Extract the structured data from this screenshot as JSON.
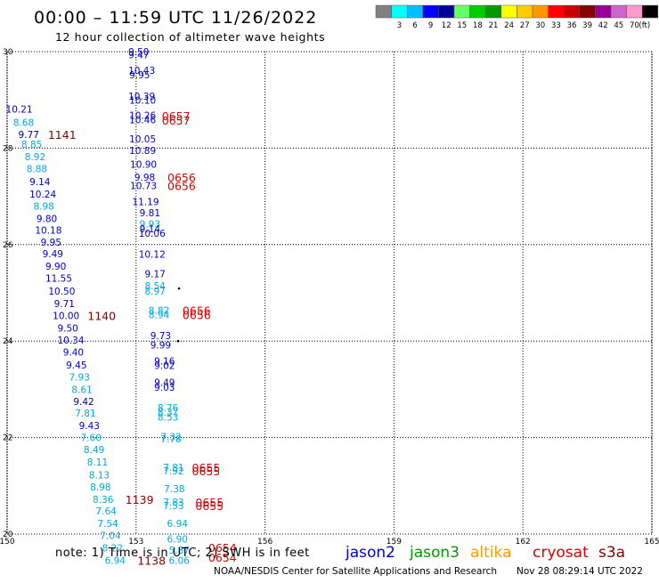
{
  "header": {
    "title": "00:00 – 11:59 UTC 11/26/2022",
    "subtitle": "12 hour collection of altimeter wave heights"
  },
  "color_scale": {
    "unit": "(ft)",
    "bins": [
      {
        "label": "",
        "color": "#808080"
      },
      {
        "label": "3",
        "color": "#00ffff"
      },
      {
        "label": "6",
        "color": "#00bfff"
      },
      {
        "label": "9",
        "color": "#0000ff"
      },
      {
        "label": "12",
        "color": "#000099"
      },
      {
        "label": "15",
        "color": "#66ff66"
      },
      {
        "label": "18",
        "color": "#00cc00"
      },
      {
        "label": "21",
        "color": "#009900"
      },
      {
        "label": "24",
        "color": "#ffff00"
      },
      {
        "label": "27",
        "color": "#ffcc00"
      },
      {
        "label": "30",
        "color": "#ff9900"
      },
      {
        "label": "33",
        "color": "#ff0000"
      },
      {
        "label": "36",
        "color": "#cc0000"
      },
      {
        "label": "39",
        "color": "#880000"
      },
      {
        "label": "42",
        "color": "#990099"
      },
      {
        "label": "45",
        "color": "#cc66cc"
      },
      {
        "label": "70",
        "color": "#ff99cc"
      },
      {
        "label": "",
        "color": "#000000"
      }
    ]
  },
  "footer": {
    "note": "note: 1) Time is in UTC; 2) SWH is in feet",
    "credit": "NOAA/NESDIS Center for Satellite Applications and Research",
    "timestamp": "Nov 28 08:29:14 UTC 2022",
    "satellites": [
      {
        "name": "jason2",
        "color": "#0000cc"
      },
      {
        "name": "jason3",
        "color": "#009900"
      },
      {
        "name": "altika",
        "color": "#ff9900"
      },
      {
        "name": "cryosat",
        "color": "#dd0000"
      },
      {
        "name": "s3a",
        "color": "#880000"
      }
    ]
  },
  "chart_data": {
    "type": "scatter",
    "title": "12 hour collection of altimeter wave heights",
    "xlim": [
      150,
      165
    ],
    "ylim": [
      20,
      30
    ],
    "x_ticks": [
      "150",
      "153",
      "156",
      "159",
      "162",
      "165"
    ],
    "y_ticks": [
      "20",
      "22",
      "24",
      "26",
      "28",
      "30"
    ],
    "grid": true,
    "swh_labels": [
      {
        "lon": 152.82,
        "lat": 30.0,
        "text": "9.50",
        "color": "#0000cc"
      },
      {
        "lon": 152.82,
        "lat": 29.94,
        "text": "9.47",
        "color": "#0000cc"
      },
      {
        "lon": 152.82,
        "lat": 29.61,
        "text": "10.43",
        "color": "#0000cc"
      },
      {
        "lon": 152.84,
        "lat": 29.52,
        "text": "9.95",
        "color": "#0000cc"
      },
      {
        "lon": 152.82,
        "lat": 29.08,
        "text": "10.39",
        "color": "#0000cc"
      },
      {
        "lon": 152.84,
        "lat": 28.99,
        "text": "10.10",
        "color": "#0000cc"
      },
      {
        "lon": 149.97,
        "lat": 28.81,
        "text": "10.21",
        "color": "#0000cc"
      },
      {
        "lon": 152.84,
        "lat": 28.68,
        "text": "10.26",
        "color": "#0000cc"
      },
      {
        "lon": 152.84,
        "lat": 28.59,
        "text": "10.46",
        "color": "#0000cc"
      },
      {
        "lon": 150.14,
        "lat": 28.53,
        "text": "8.68",
        "color": "#00aadd"
      },
      {
        "lon": 150.26,
        "lat": 28.28,
        "text": "9.77",
        "color": "#000088"
      },
      {
        "lon": 152.84,
        "lat": 28.19,
        "text": "10.05",
        "color": "#0000cc"
      },
      {
        "lon": 150.33,
        "lat": 28.08,
        "text": "8.85",
        "color": "#00aadd"
      },
      {
        "lon": 152.84,
        "lat": 27.95,
        "text": "10.89",
        "color": "#0000cc"
      },
      {
        "lon": 150.41,
        "lat": 27.82,
        "text": "8.92",
        "color": "#00aadd"
      },
      {
        "lon": 152.86,
        "lat": 27.67,
        "text": "10.90",
        "color": "#0000cc"
      },
      {
        "lon": 150.45,
        "lat": 27.57,
        "text": "8.88",
        "color": "#00aadd"
      },
      {
        "lon": 152.96,
        "lat": 27.4,
        "text": "9.98",
        "color": "#0000cc"
      },
      {
        "lon": 150.52,
        "lat": 27.31,
        "text": "9.14",
        "color": "#0000cc"
      },
      {
        "lon": 152.86,
        "lat": 27.22,
        "text": "10.73",
        "color": "#0000cc"
      },
      {
        "lon": 150.52,
        "lat": 27.05,
        "text": "10.24",
        "color": "#0000cc"
      },
      {
        "lon": 152.91,
        "lat": 26.89,
        "text": "11.19",
        "color": "#0000cc"
      },
      {
        "lon": 150.61,
        "lat": 26.8,
        "text": "8.98",
        "color": "#00aadd"
      },
      {
        "lon": 153.08,
        "lat": 26.66,
        "text": "9.81",
        "color": "#0000cc"
      },
      {
        "lon": 150.68,
        "lat": 26.54,
        "text": "9.80",
        "color": "#0000cc"
      },
      {
        "lon": 153.08,
        "lat": 26.43,
        "text": "9.93",
        "color": "#00aadd"
      },
      {
        "lon": 150.65,
        "lat": 26.3,
        "text": "10.18",
        "color": "#0000cc"
      },
      {
        "lon": 153.08,
        "lat": 26.33,
        "text": "9.14",
        "color": "#0000cc"
      },
      {
        "lon": 153.06,
        "lat": 26.24,
        "text": "10.06",
        "color": "#0000cc"
      },
      {
        "lon": 150.78,
        "lat": 26.05,
        "text": "9.95",
        "color": "#0000cc"
      },
      {
        "lon": 150.82,
        "lat": 25.81,
        "text": "9.49",
        "color": "#0000cc"
      },
      {
        "lon": 153.06,
        "lat": 25.8,
        "text": "10.12",
        "color": "#0000cc"
      },
      {
        "lon": 150.89,
        "lat": 25.55,
        "text": "9.90",
        "color": "#0000cc"
      },
      {
        "lon": 153.2,
        "lat": 25.4,
        "text": "9.17",
        "color": "#0000cc"
      },
      {
        "lon": 150.89,
        "lat": 25.3,
        "text": "11.55",
        "color": "#0000cc"
      },
      {
        "lon": 153.2,
        "lat": 25.15,
        "text": "8.54",
        "color": "#00aadd"
      },
      {
        "lon": 150.96,
        "lat": 25.04,
        "text": "10.50",
        "color": "#0000cc"
      },
      {
        "lon": 153.2,
        "lat": 25.04,
        "text": "8.97",
        "color": "#00aadd"
      },
      {
        "lon": 151.09,
        "lat": 24.78,
        "text": "9.71",
        "color": "#0000cc"
      },
      {
        "lon": 153.29,
        "lat": 24.64,
        "text": "8.82",
        "color": "#00aadd"
      },
      {
        "lon": 153.29,
        "lat": 24.55,
        "text": "8.94",
        "color": "#00aadd"
      },
      {
        "lon": 151.06,
        "lat": 24.53,
        "text": "10.00",
        "color": "#0000cc"
      },
      {
        "lon": 151.17,
        "lat": 24.27,
        "text": "9.50",
        "color": "#0000cc"
      },
      {
        "lon": 153.33,
        "lat": 24.11,
        "text": "9.73",
        "color": "#0000cc"
      },
      {
        "lon": 151.17,
        "lat": 24.02,
        "text": "10.34",
        "color": "#0000cc"
      },
      {
        "lon": 153.33,
        "lat": 23.92,
        "text": "9.99",
        "color": "#0000cc"
      },
      {
        "lon": 151.3,
        "lat": 23.77,
        "text": "9.40",
        "color": "#0000cc"
      },
      {
        "lon": 153.42,
        "lat": 23.59,
        "text": "9.16",
        "color": "#0000cc"
      },
      {
        "lon": 151.37,
        "lat": 23.51,
        "text": "9.45",
        "color": "#0000cc"
      },
      {
        "lon": 153.42,
        "lat": 23.5,
        "text": "9.02",
        "color": "#0000cc"
      },
      {
        "lon": 151.44,
        "lat": 23.26,
        "text": "7.93",
        "color": "#00aadd"
      },
      {
        "lon": 153.42,
        "lat": 23.15,
        "text": "9.49",
        "color": "#0000cc"
      },
      {
        "lon": 153.42,
        "lat": 23.04,
        "text": "9.03",
        "color": "#0000cc"
      },
      {
        "lon": 151.5,
        "lat": 23.0,
        "text": "8.61",
        "color": "#00aadd"
      },
      {
        "lon": 151.54,
        "lat": 22.75,
        "text": "9.42",
        "color": "#000088"
      },
      {
        "lon": 153.5,
        "lat": 22.62,
        "text": "8.76",
        "color": "#00aadd"
      },
      {
        "lon": 153.5,
        "lat": 22.53,
        "text": "8.37",
        "color": "#00aadd"
      },
      {
        "lon": 151.58,
        "lat": 22.51,
        "text": "7.81",
        "color": "#00aadd"
      },
      {
        "lon": 153.5,
        "lat": 22.43,
        "text": "8.53",
        "color": "#00aadd"
      },
      {
        "lon": 151.67,
        "lat": 22.25,
        "text": "9.43",
        "color": "#0000cc"
      },
      {
        "lon": 153.57,
        "lat": 22.02,
        "text": "7.32",
        "color": "#00aadd"
      },
      {
        "lon": 151.71,
        "lat": 22.0,
        "text": "7.60",
        "color": "#00aadd"
      },
      {
        "lon": 153.57,
        "lat": 21.97,
        "text": "7.78",
        "color": "#00aadd"
      },
      {
        "lon": 151.78,
        "lat": 21.75,
        "text": "8.49",
        "color": "#00aadd"
      },
      {
        "lon": 151.86,
        "lat": 21.49,
        "text": "8.11",
        "color": "#00aadd"
      },
      {
        "lon": 153.63,
        "lat": 21.38,
        "text": "7.81",
        "color": "#00aadd"
      },
      {
        "lon": 153.63,
        "lat": 21.31,
        "text": "7.92",
        "color": "#00aadd"
      },
      {
        "lon": 151.9,
        "lat": 21.23,
        "text": "8.13",
        "color": "#00aadd"
      },
      {
        "lon": 151.93,
        "lat": 20.98,
        "text": "8.98",
        "color": "#00aadd"
      },
      {
        "lon": 153.65,
        "lat": 20.94,
        "text": "7.38",
        "color": "#00aadd"
      },
      {
        "lon": 151.99,
        "lat": 20.72,
        "text": "8.36",
        "color": "#00aadd"
      },
      {
        "lon": 153.63,
        "lat": 20.66,
        "text": "7.83",
        "color": "#00aadd"
      },
      {
        "lon": 153.63,
        "lat": 20.59,
        "text": "7.53",
        "color": "#00aadd"
      },
      {
        "lon": 152.06,
        "lat": 20.48,
        "text": "7.64",
        "color": "#00aadd"
      },
      {
        "lon": 152.1,
        "lat": 20.22,
        "text": "7.54",
        "color": "#00aadd"
      },
      {
        "lon": 153.72,
        "lat": 20.22,
        "text": "6.94",
        "color": "#00aadd"
      },
      {
        "lon": 152.16,
        "lat": 19.97,
        "text": "7.04",
        "color": "#00aadd"
      },
      {
        "lon": 153.72,
        "lat": 19.9,
        "text": "6.90",
        "color": "#00aadd"
      },
      {
        "lon": 152.21,
        "lat": 19.71,
        "text": "8.22",
        "color": "#00aadd"
      },
      {
        "lon": 153.76,
        "lat": 19.67,
        "text": "5.87",
        "color": "#00aadd"
      },
      {
        "lon": 152.27,
        "lat": 19.46,
        "text": "6.94",
        "color": "#00aadd"
      },
      {
        "lon": 153.76,
        "lat": 19.46,
        "text": "6.06",
        "color": "#00aadd"
      }
    ],
    "time_labels": [
      {
        "lon": 153.6,
        "lat": 28.67,
        "text": "0657",
        "color": "#dd0000"
      },
      {
        "lon": 153.6,
        "lat": 28.58,
        "text": "0657",
        "color": "#dd0000"
      },
      {
        "lon": 150.95,
        "lat": 28.28,
        "text": "1141",
        "color": "#880000"
      },
      {
        "lon": 153.73,
        "lat": 27.4,
        "text": "0656",
        "color": "#dd0000"
      },
      {
        "lon": 153.73,
        "lat": 27.22,
        "text": "0656",
        "color": "#dd0000"
      },
      {
        "lon": 151.87,
        "lat": 24.53,
        "text": "1140",
        "color": "#880000"
      },
      {
        "lon": 154.08,
        "lat": 24.64,
        "text": "0656",
        "color": "#dd0000"
      },
      {
        "lon": 154.08,
        "lat": 24.55,
        "text": "0656",
        "color": "#dd0000"
      },
      {
        "lon": 154.3,
        "lat": 21.38,
        "text": "0655",
        "color": "#dd0000"
      },
      {
        "lon": 154.3,
        "lat": 21.31,
        "text": "0655",
        "color": "#dd0000"
      },
      {
        "lon": 152.75,
        "lat": 20.72,
        "text": "1139",
        "color": "#880000"
      },
      {
        "lon": 154.38,
        "lat": 20.66,
        "text": "0655",
        "color": "#dd0000"
      },
      {
        "lon": 154.38,
        "lat": 20.59,
        "text": "0655",
        "color": "#dd0000"
      },
      {
        "lon": 154.68,
        "lat": 19.72,
        "text": "0654",
        "color": "#dd0000"
      },
      {
        "lon": 154.68,
        "lat": 19.52,
        "text": "0654",
        "color": "#dd0000"
      },
      {
        "lon": 153.03,
        "lat": 19.46,
        "text": "1138",
        "color": "#880000"
      }
    ],
    "track_dots": [
      {
        "lon": 154.0,
        "lat": 25.09
      },
      {
        "lon": 153.98,
        "lat": 24.0
      }
    ]
  }
}
